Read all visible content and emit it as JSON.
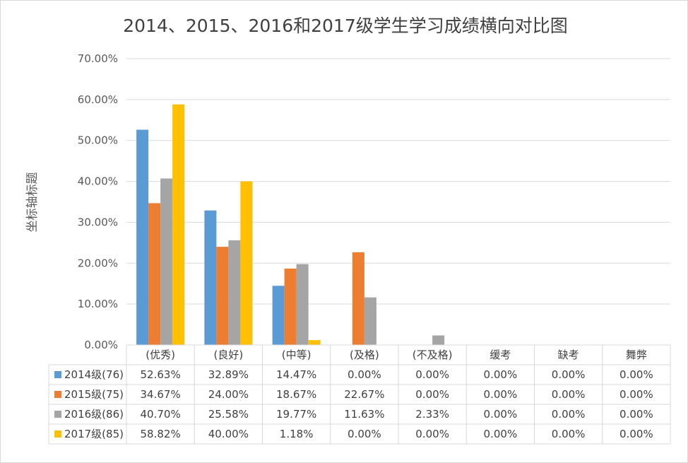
{
  "chart_data": {
    "type": "bar",
    "title": "2014、2015、2016和2017级学生学习成绩横向对比图",
    "ylabel": "坐标轴标题",
    "xlabel": "",
    "ylim": [
      0,
      70
    ],
    "y_ticks": [
      "0.00%",
      "10.00%",
      "20.00%",
      "30.00%",
      "40.00%",
      "50.00%",
      "60.00%",
      "70.00%"
    ],
    "grid": true,
    "legend": "data-table-left",
    "categories": [
      "(优秀)",
      "(良好)",
      "(中等)",
      "(及格)",
      "(不及格)",
      "缓考",
      "缺考",
      "舞弊"
    ],
    "series": [
      {
        "name": "2014级(76)",
        "color": "#5b9bd5",
        "values": [
          52.63,
          32.89,
          14.47,
          0.0,
          0.0,
          0.0,
          0.0,
          0.0
        ],
        "labels": [
          "52.63%",
          "32.89%",
          "14.47%",
          "0.00%",
          "0.00%",
          "0.00%",
          "0.00%",
          "0.00%"
        ]
      },
      {
        "name": "2015级(75)",
        "color": "#ed7d31",
        "values": [
          34.67,
          24.0,
          18.67,
          22.67,
          0.0,
          0.0,
          0.0,
          0.0
        ],
        "labels": [
          "34.67%",
          "24.00%",
          "18.67%",
          "22.67%",
          "0.00%",
          "0.00%",
          "0.00%",
          "0.00%"
        ]
      },
      {
        "name": "2016级(86)",
        "color": "#a5a5a5",
        "values": [
          40.7,
          25.58,
          19.77,
          11.63,
          2.33,
          0.0,
          0.0,
          0.0
        ],
        "labels": [
          "40.70%",
          "25.58%",
          "19.77%",
          "11.63%",
          "2.33%",
          "0.00%",
          "0.00%",
          "0.00%"
        ]
      },
      {
        "name": "2017级(85)",
        "color": "#ffc000",
        "values": [
          58.82,
          40.0,
          1.18,
          0.0,
          0.0,
          0.0,
          0.0,
          0.0
        ],
        "labels": [
          "58.82%",
          "40.00%",
          "1.18%",
          "0.00%",
          "0.00%",
          "0.00%",
          "0.00%",
          "0.00%"
        ]
      }
    ]
  }
}
